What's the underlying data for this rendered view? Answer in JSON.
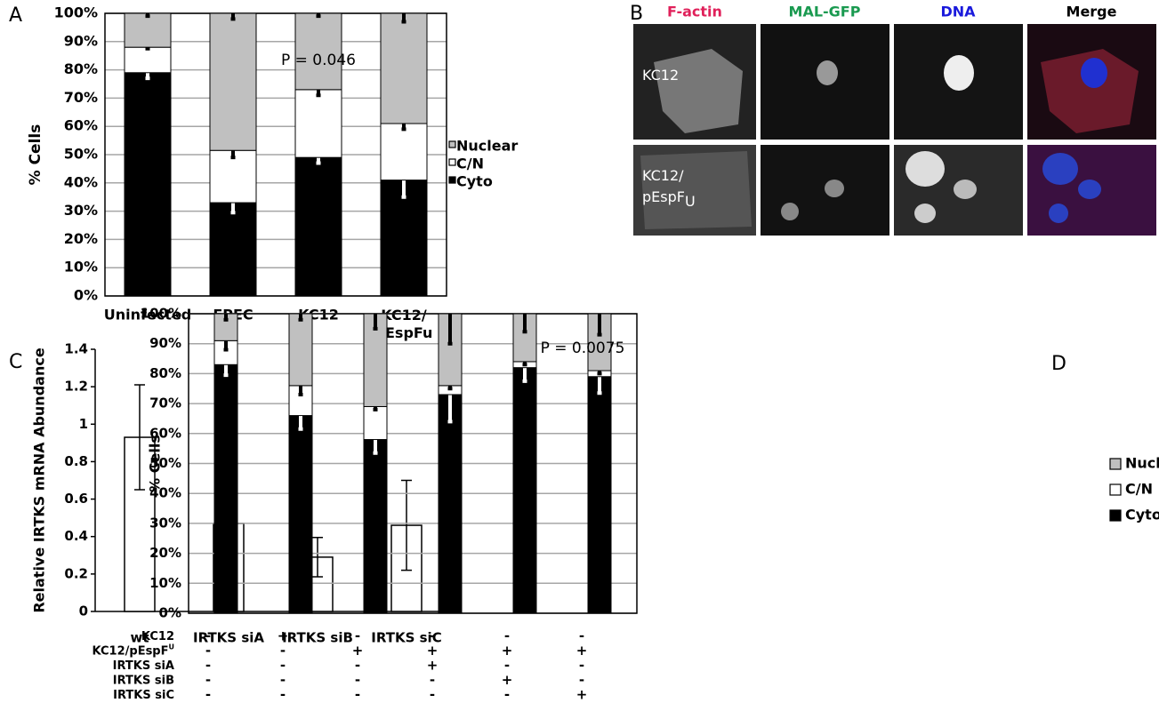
{
  "chart_data": [
    {
      "type": "stackedbar",
      "panel": "A",
      "ylabel": "% Cells",
      "annotation": "P = 0.046",
      "categories": [
        "Uninfected",
        "EPEC",
        "KC12",
        "KC12/\npEspFu"
      ],
      "series": [
        {
          "name": "Cyto",
          "color": "#000000",
          "values": [
            79,
            33,
            49,
            41
          ],
          "errors": [
            2,
            3.5,
            2,
            6
          ]
        },
        {
          "name": "C/N",
          "color": "#ffffff",
          "values": [
            9,
            18.5,
            24,
            20
          ],
          "errors": [
            0.5,
            2.5,
            2,
            2
          ]
        },
        {
          "name": "Nuclear",
          "color": "#c0c0c0",
          "values": [
            12,
            48.5,
            27,
            39
          ],
          "errors": [
            1,
            2,
            1,
            3
          ]
        }
      ],
      "ylim": [
        0,
        100
      ],
      "yticks": [
        {
          "value": 0,
          "label": "0%"
        },
        {
          "value": 10,
          "label": "10%"
        },
        {
          "value": 20,
          "label": "20%"
        },
        {
          "value": 30,
          "label": "30%"
        },
        {
          "value": 40,
          "label": "40%"
        },
        {
          "value": 50,
          "label": "50%"
        },
        {
          "value": 60,
          "label": "60%"
        },
        {
          "value": 70,
          "label": "70%"
        },
        {
          "value": 80,
          "label": "80%"
        },
        {
          "value": 90,
          "label": "90%"
        },
        {
          "value": 100,
          "label": "100%"
        }
      ],
      "grid": true
    },
    {
      "type": "bar",
      "panel": "C",
      "ylabel": "Relative IRTKS mRNA Abundance",
      "categories": [
        "wt",
        "IRTKS siA",
        "IRTKS siB",
        "IRTKS siC"
      ],
      "values": [
        0.93,
        0.47,
        0.29,
        0.46
      ],
      "errors": [
        0.28,
        0.145,
        0.105,
        0.24
      ],
      "color": "#ffffff",
      "ylim": [
        0,
        1.4
      ],
      "yticks": [
        0,
        0.2,
        0.4,
        0.6,
        0.8,
        1,
        1.2,
        1.4
      ],
      "grid": false
    },
    {
      "type": "stackedbar",
      "panel": "D",
      "ylabel": "% Cells",
      "annotation": "P = 0.0075",
      "categories": [
        null,
        null,
        null,
        null,
        null,
        null
      ],
      "series": [
        {
          "name": "Cytoplasmic",
          "color": "#000000",
          "values": [
            83,
            66,
            58,
            73,
            82,
            79
          ],
          "errors": [
            3.5,
            4.5,
            4.5,
            9,
            4.5,
            5.5
          ]
        },
        {
          "name": "C/N",
          "color": "#ffffff",
          "values": [
            8,
            10,
            11,
            3,
            2,
            2
          ],
          "errors": [
            3,
            3,
            1,
            1,
            1,
            1
          ]
        },
        {
          "name": "Nuclear",
          "color": "#c0c0c0",
          "values": [
            9,
            24,
            31,
            24,
            16,
            19
          ],
          "errors": [
            2,
            2,
            5,
            10,
            6,
            7
          ]
        }
      ],
      "ylim": [
        0,
        100
      ],
      "yticks": [
        {
          "value": 0,
          "label": "0%"
        },
        {
          "value": 10,
          "label": "10%"
        },
        {
          "value": 20,
          "label": "20%"
        },
        {
          "value": 30,
          "label": "30%"
        },
        {
          "value": 40,
          "label": "40%"
        },
        {
          "value": 50,
          "label": "50%"
        },
        {
          "value": 60,
          "label": "60%"
        },
        {
          "value": 70,
          "label": "70%"
        },
        {
          "value": 80,
          "label": "80%"
        },
        {
          "value": 90,
          "label": "90%"
        },
        {
          "value": 100,
          "label": "100%"
        }
      ],
      "grid": true,
      "conditions": [
        {
          "label": "KC12",
          "signs": [
            "-",
            "+",
            "-",
            "-",
            "-",
            "-"
          ]
        },
        {
          "label": "KC12/pEspF",
          "label_sup": "U",
          "signs": [
            "-",
            "-",
            "+",
            "+",
            "+",
            "+"
          ]
        },
        {
          "label": "IRTKS siA",
          "signs": [
            "-",
            "-",
            "-",
            "+",
            "-",
            "-"
          ]
        },
        {
          "label": "IRTKS siB",
          "signs": [
            "-",
            "-",
            "-",
            "-",
            "+",
            "-"
          ]
        },
        {
          "label": "IRTKS siC",
          "signs": [
            "-",
            "-",
            "-",
            "-",
            "-",
            "+"
          ]
        }
      ]
    }
  ],
  "micrographs": {
    "panel": "B",
    "columns": [
      "F-actin",
      "MAL-GFP",
      "DNA",
      "Merge"
    ],
    "column_colors": [
      "#e0205a",
      "#1a9a50",
      "#1a1adc",
      "#000000"
    ],
    "rows": [
      {
        "label": "KC12"
      },
      {
        "label": "KC12/",
        "label2": "pEspF",
        "label_sub": "U"
      }
    ]
  }
}
